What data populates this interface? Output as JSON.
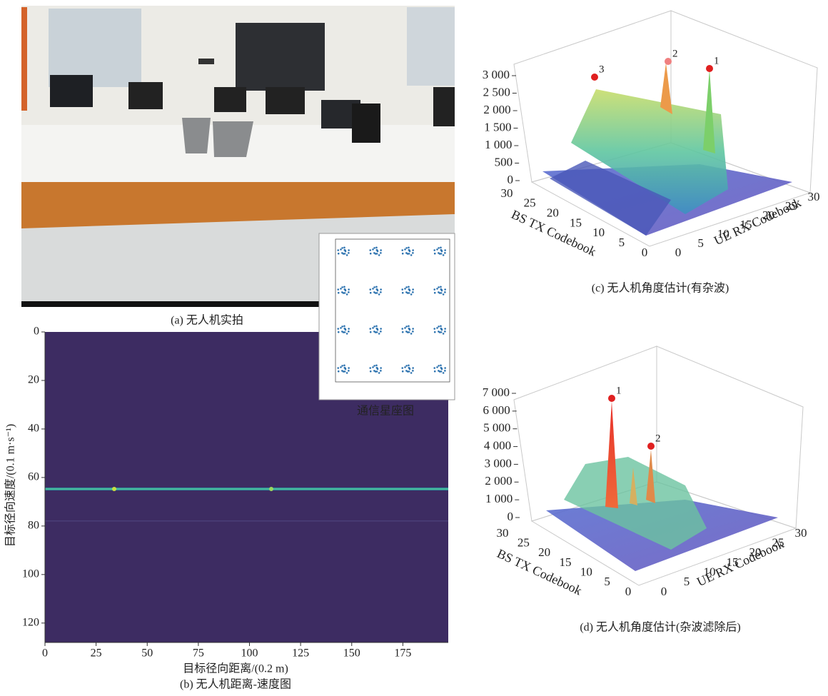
{
  "panel_a": {
    "caption": "(a) 无人机实拍"
  },
  "constellation": {
    "label": "通信星座图"
  },
  "panel_b": {
    "caption": "(b) 无人机距离-速度图",
    "xlabel": "目标径向距离/(0.2 m)",
    "ylabel": "目标径向速度/(0.1 m·s⁻¹)",
    "xlim": [
      0,
      200
    ],
    "ylim": [
      0,
      128
    ],
    "xticks": [
      0,
      25,
      50,
      75,
      100,
      125,
      150,
      175
    ],
    "yticks": [
      0,
      20,
      40,
      60,
      80,
      100,
      120
    ]
  },
  "panel_c": {
    "caption": "(c) 无人机角度估计(有杂波)",
    "xlabel": "BS TX Codebook",
    "ylabel": "UE RX Codebook",
    "zlim": [
      0,
      3000
    ],
    "zticks": [
      0,
      500,
      {
        "value": 1000,
        "label": "1 000"
      },
      {
        "value": 1500,
        "label": "1 500"
      },
      {
        "value": 2000,
        "label": "2 000"
      },
      {
        "value": 2500,
        "label": "2 500"
      },
      {
        "value": 3000,
        "label": "3 000"
      }
    ],
    "xlim": [
      0,
      30
    ],
    "xticks": [
      0,
      5,
      10,
      15,
      20,
      25,
      30
    ],
    "ylim": [
      0,
      30
    ],
    "yticks": [
      0,
      5,
      10,
      15,
      20,
      25,
      30
    ],
    "peaks": [
      "1",
      "2",
      "3"
    ]
  },
  "panel_d": {
    "caption": "(d) 无人机角度估计(杂波滤除后)",
    "xlabel": "BS TX Codebook",
    "ylabel": "UE RX Codebook",
    "zlim": [
      0,
      7000
    ],
    "zticks": [
      0,
      {
        "value": 1000,
        "label": "1 000"
      },
      {
        "value": 2000,
        "label": "2 000"
      },
      {
        "value": 3000,
        "label": "3 000"
      },
      {
        "value": 4000,
        "label": "4 000"
      },
      {
        "value": 5000,
        "label": "5 000"
      },
      {
        "value": 6000,
        "label": "6 000"
      },
      {
        "value": 7000,
        "label": "7 000"
      }
    ],
    "xlim": [
      0,
      30
    ],
    "xticks": [
      0,
      5,
      10,
      15,
      20,
      25,
      30
    ],
    "ylim": [
      0,
      30
    ],
    "yticks": [
      0,
      5,
      10,
      15,
      20,
      25,
      30
    ],
    "peaks": [
      "1",
      "2"
    ]
  }
}
